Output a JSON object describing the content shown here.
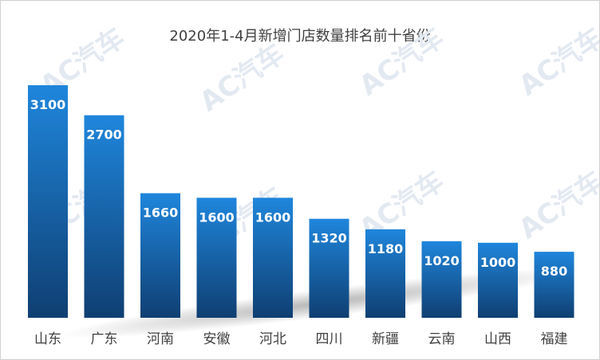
{
  "chart_data": {
    "type": "bar",
    "title": "2020年1-4月新增门店数量排名前十省份",
    "categories": [
      "山东",
      "广东",
      "河南",
      "安徽",
      "河北",
      "四川",
      "新疆",
      "云南",
      "山西",
      "福建"
    ],
    "values": [
      3100,
      2700,
      1660,
      1600,
      1600,
      1320,
      1180,
      1020,
      1000,
      880
    ],
    "xlabel": "",
    "ylabel": "",
    "ylim": [
      0,
      3100
    ],
    "grid": false,
    "legend": "none",
    "bar_color_top": "#1f86dc",
    "bar_color_bottom": "#0f3f72"
  },
  "watermark": {
    "text": "AC汽车",
    "color": "#e3e9f1"
  }
}
